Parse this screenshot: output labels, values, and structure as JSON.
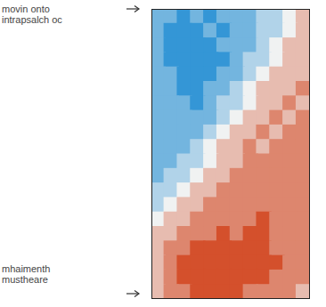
{
  "chart_data": {
    "type": "heatmap",
    "annotations": [
      "movin onto\nintrapsalch oc",
      "mhaimenth\nmustheare"
    ],
    "tick_labels": false,
    "cells": [
      [
        -2,
        -2,
        -3,
        -2,
        -3,
        -2,
        -2,
        -2,
        -1,
        -1,
        0,
        1
      ],
      [
        -2,
        -3,
        -3,
        -3,
        -2,
        -3,
        -2,
        -2,
        -1,
        -1,
        0,
        1
      ],
      [
        -2,
        -3,
        -3,
        -3,
        -3,
        -2,
        -2,
        -2,
        -1,
        0,
        1,
        1
      ],
      [
        -2,
        -3,
        -3,
        -3,
        -3,
        -3,
        -2,
        -1,
        -1,
        0,
        1,
        1
      ],
      [
        -2,
        -2,
        -3,
        -3,
        -3,
        -2,
        -2,
        -1,
        0,
        1,
        1,
        1
      ],
      [
        -2,
        -2,
        -3,
        -3,
        -2,
        -2,
        -1,
        0,
        1,
        1,
        1,
        2
      ],
      [
        -2,
        -2,
        -2,
        -3,
        -2,
        -1,
        -1,
        0,
        1,
        1,
        2,
        1
      ],
      [
        -2,
        -2,
        -2,
        -2,
        -2,
        -1,
        0,
        1,
        1,
        2,
        1,
        2
      ],
      [
        -2,
        -2,
        -2,
        -2,
        -1,
        0,
        1,
        1,
        2,
        1,
        2,
        2
      ],
      [
        -2,
        -2,
        -2,
        -1,
        0,
        1,
        1,
        2,
        1,
        2,
        2,
        2
      ],
      [
        -2,
        -2,
        -1,
        -1,
        0,
        1,
        1,
        2,
        2,
        2,
        2,
        2
      ],
      [
        -2,
        -1,
        -1,
        0,
        1,
        1,
        2,
        2,
        2,
        2,
        2,
        2
      ],
      [
        -1,
        -1,
        0,
        1,
        1,
        2,
        2,
        2,
        2,
        2,
        2,
        2
      ],
      [
        -1,
        0,
        1,
        1,
        2,
        2,
        2,
        2,
        2,
        2,
        2,
        2
      ],
      [
        0,
        1,
        1,
        2,
        2,
        2,
        2,
        2,
        3,
        2,
        2,
        2
      ],
      [
        1,
        1,
        2,
        2,
        2,
        3,
        2,
        3,
        3,
        2,
        2,
        2
      ],
      [
        1,
        2,
        2,
        3,
        3,
        3,
        3,
        3,
        3,
        2,
        2,
        2
      ],
      [
        1,
        2,
        3,
        3,
        3,
        3,
        3,
        3,
        3,
        3,
        2,
        2
      ],
      [
        1,
        2,
        3,
        3,
        3,
        3,
        3,
        3,
        3,
        2,
        2,
        2
      ],
      [
        1,
        2,
        2,
        3,
        3,
        3,
        3,
        2,
        2,
        2,
        2,
        1
      ]
    ]
  }
}
